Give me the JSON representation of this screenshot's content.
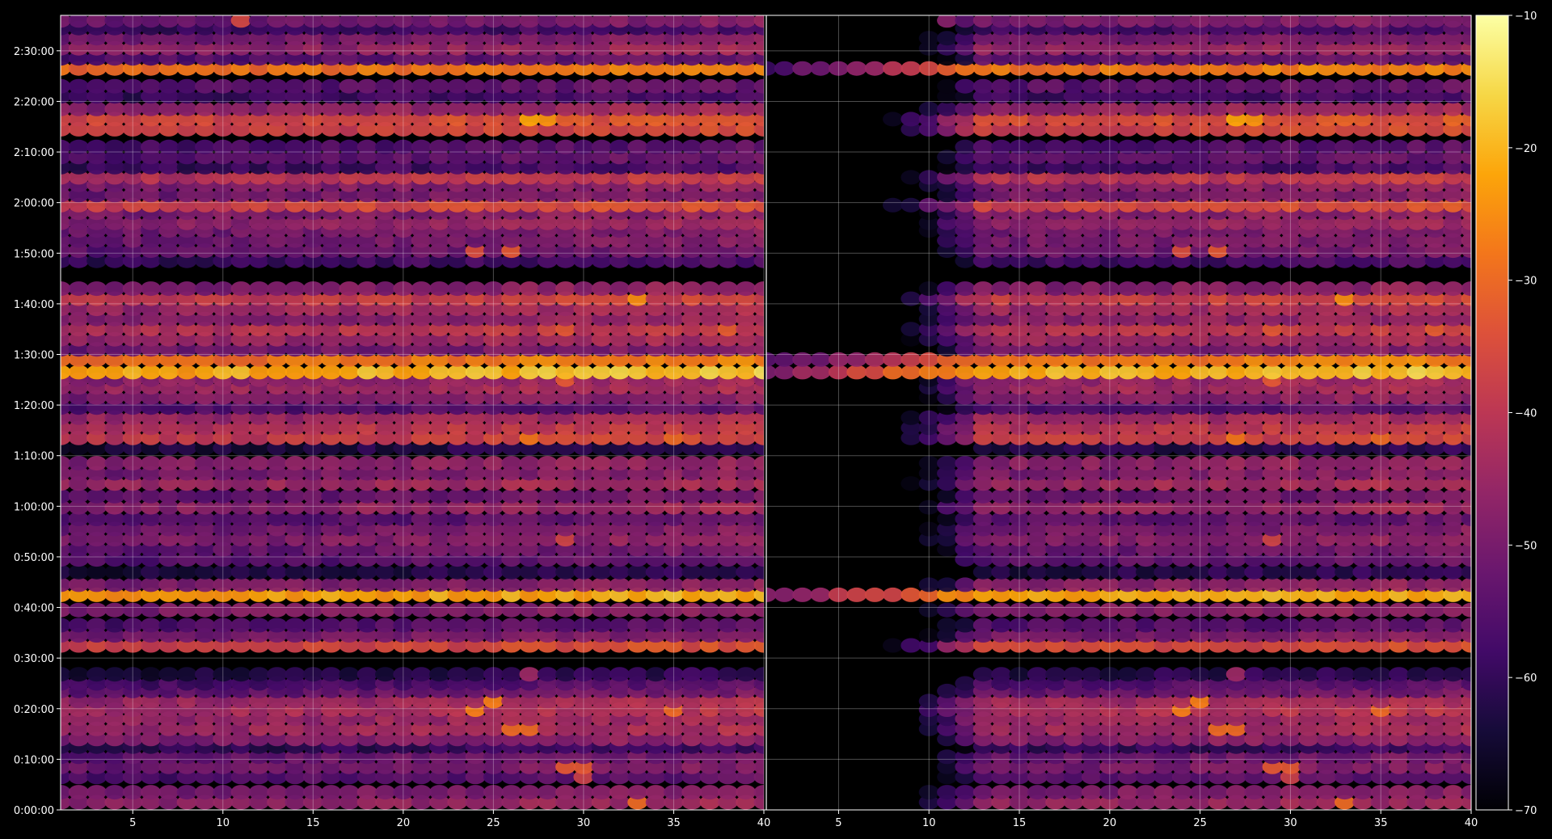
{
  "chart_data": {
    "type": "heatmap",
    "title": "",
    "xlabel": "",
    "ylabel": "",
    "colormap": "inferno",
    "background": "#000000",
    "grid": true,
    "panels": [
      {
        "name": "",
        "xlim": [
          1,
          40
        ],
        "x_ticks": [
          "5",
          "10",
          "15",
          "20",
          "25",
          "30",
          "35",
          "40"
        ],
        "active_from": 1
      },
      {
        "name": "",
        "xlim": [
          1,
          40
        ],
        "x_ticks": [
          "5",
          "10",
          "15",
          "20",
          "25",
          "30",
          "35",
          "40"
        ],
        "active_from": 13
      }
    ],
    "y_ticks": [
      "0:00:00",
      "0:10:00",
      "0:20:00",
      "0:30:00",
      "0:40:00",
      "0:50:00",
      "1:00:00",
      "1:10:00",
      "1:20:00",
      "1:30:00",
      "1:40:00",
      "1:50:00",
      "2:00:00",
      "2:10:00",
      "2:20:00",
      "2:30:00"
    ],
    "ylim_minutes": [
      0,
      157
    ],
    "colorbar": {
      "range": [
        -70,
        -10
      ],
      "ticks": [
        "−10",
        "−20",
        "−30",
        "−40",
        "−50",
        "−60",
        "−70"
      ]
    },
    "bands": [
      {
        "t": 1.5,
        "level": -46,
        "hot": [
          [
            33,
            -30
          ]
        ]
      },
      {
        "t": 3.5,
        "level": -49
      },
      {
        "t": 6.5,
        "level": -55,
        "hot": [
          [
            30,
            -38
          ]
        ]
      },
      {
        "t": 8.5,
        "level": -50,
        "hot": [
          [
            29,
            -33
          ],
          [
            30,
            -33
          ]
        ]
      },
      {
        "t": 10.5,
        "level": -52
      },
      {
        "t": 12.5,
        "level": -60
      },
      {
        "t": 14,
        "level": -48
      },
      {
        "t": 16,
        "level": -44,
        "hot": [
          [
            26,
            -30
          ],
          [
            27,
            -30
          ]
        ]
      },
      {
        "t": 18,
        "level": -45
      },
      {
        "t": 19.8,
        "level": -42,
        "hot": [
          [
            24,
            -27
          ],
          [
            35,
            -30
          ]
        ]
      },
      {
        "t": 21.5,
        "level": -44,
        "hot": [
          [
            25,
            -27
          ]
        ]
      },
      {
        "t": 23.5,
        "level": -52
      },
      {
        "t": 25,
        "level": -56
      },
      {
        "t": 26.8,
        "level": -62,
        "hot": [
          [
            27,
            -45
          ]
        ]
      },
      {
        "t": 32.5,
        "level": -36
      },
      {
        "t": 34.5,
        "level": -50
      },
      {
        "t": 36.5,
        "level": -55
      },
      {
        "t": 39.5,
        "level": -48
      },
      {
        "t": 42.5,
        "level": -22
      },
      {
        "t": 44.5,
        "level": -48
      },
      {
        "t": 47,
        "level": -62
      },
      {
        "t": 49.5,
        "level": -54
      },
      {
        "t": 51.5,
        "level": -52
      },
      {
        "t": 53.5,
        "level": -48,
        "hot": [
          [
            29,
            -37
          ]
        ]
      },
      {
        "t": 55.5,
        "level": -50
      },
      {
        "t": 57.5,
        "level": -54
      },
      {
        "t": 59.8,
        "level": -46
      },
      {
        "t": 62,
        "level": -52
      },
      {
        "t": 64.5,
        "level": -44
      },
      {
        "t": 66.5,
        "level": -49
      },
      {
        "t": 68.5,
        "level": -47
      },
      {
        "t": 71.5,
        "level": -62
      },
      {
        "t": 73.5,
        "level": -38,
        "hot": [
          [
            27,
            -28
          ],
          [
            35,
            -30
          ]
        ]
      },
      {
        "t": 75.5,
        "level": -40
      },
      {
        "t": 77.5,
        "level": -44
      },
      {
        "t": 79.5,
        "level": -55
      },
      {
        "t": 81.5,
        "level": -48
      },
      {
        "t": 83.5,
        "level": -44
      },
      {
        "t": 85,
        "level": -46,
        "hot": [
          [
            29,
            -33
          ]
        ]
      },
      {
        "t": 86.5,
        "level": -20
      },
      {
        "t": 89,
        "level": -28
      },
      {
        "t": 91,
        "level": -50
      },
      {
        "t": 93,
        "level": -45
      },
      {
        "t": 95,
        "level": -40,
        "hot": [
          [
            29,
            -33
          ],
          [
            38,
            -32
          ]
        ]
      },
      {
        "t": 97,
        "level": -47
      },
      {
        "t": 99,
        "level": -44
      },
      {
        "t": 101,
        "level": -38,
        "hot": [
          [
            33,
            -25
          ]
        ]
      },
      {
        "t": 103,
        "level": -48
      },
      {
        "t": 108.5,
        "level": -58
      },
      {
        "t": 110.5,
        "level": -52,
        "hot": [
          [
            24,
            -35
          ],
          [
            26,
            -33
          ]
        ]
      },
      {
        "t": 112.5,
        "level": -50
      },
      {
        "t": 114.5,
        "level": -50
      },
      {
        "t": 116,
        "level": -46
      },
      {
        "t": 118,
        "level": -48
      },
      {
        "t": 119.5,
        "level": -36
      },
      {
        "t": 121.5,
        "level": -50
      },
      {
        "t": 123.5,
        "level": -48
      },
      {
        "t": 125,
        "level": -40
      },
      {
        "t": 127,
        "level": -58
      },
      {
        "t": 129,
        "level": -54
      },
      {
        "t": 131,
        "level": -56
      },
      {
        "t": 134.5,
        "level": -37
      },
      {
        "t": 136.5,
        "level": -35,
        "hot": [
          [
            27,
            -22
          ],
          [
            28,
            -24
          ]
        ]
      },
      {
        "t": 138.5,
        "level": -46
      },
      {
        "t": 141,
        "level": -58
      },
      {
        "t": 143,
        "level": -54
      },
      {
        "t": 146.5,
        "level": -28
      },
      {
        "t": 148.5,
        "level": -54
      },
      {
        "t": 150.5,
        "level": -46
      },
      {
        "t": 152.5,
        "level": -50
      },
      {
        "t": 154.5,
        "level": -58
      },
      {
        "t": 156,
        "level": -50,
        "hot": [
          [
            11,
            -36
          ]
        ]
      }
    ]
  }
}
